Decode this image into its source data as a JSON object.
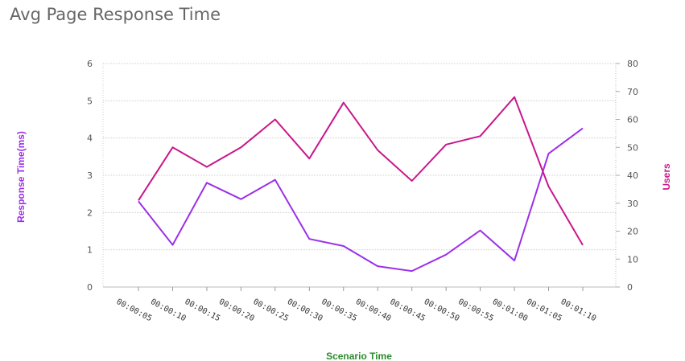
{
  "chart_data": {
    "type": "line",
    "title": "Avg Page Response Time",
    "xlabel": "Scenario Time",
    "ylabel": "Response Time(ms)",
    "y2label": "Users",
    "categories": [
      "00:00:05",
      "00:00:10",
      "00:00:15",
      "00:00:20",
      "00:00:25",
      "00:00:30",
      "00:00:35",
      "00:00:40",
      "00:00:45",
      "00:00:50",
      "00:00:55",
      "00:01:00",
      "00:01:05",
      "00:01:10"
    ],
    "ylim": [
      0,
      6
    ],
    "y2lim": [
      0,
      80
    ],
    "yticks": [
      "0",
      "1",
      "2",
      "3",
      "4",
      "5",
      "6"
    ],
    "y2ticks": [
      "0",
      "10",
      "20",
      "30",
      "40",
      "50",
      "60",
      "70",
      "80"
    ],
    "grid": true,
    "series": [
      {
        "name": "Response Time(ms)",
        "axis": "left",
        "color": "#9b30e8",
        "values": [
          2.3,
          1.13,
          2.8,
          2.36,
          2.88,
          1.29,
          1.1,
          0.56,
          0.43,
          0.87,
          1.52,
          0.71,
          3.58,
          4.26
        ]
      },
      {
        "name": "Users",
        "axis": "right",
        "color": "#c8178c",
        "values": [
          31,
          50,
          43,
          50,
          60,
          46,
          66,
          49,
          38,
          51,
          54,
          68,
          36,
          15
        ]
      }
    ],
    "colors": {
      "ylabel": "#9b30e8",
      "y2label": "#c8178c",
      "xlabel": "#2a8a2a"
    }
  }
}
